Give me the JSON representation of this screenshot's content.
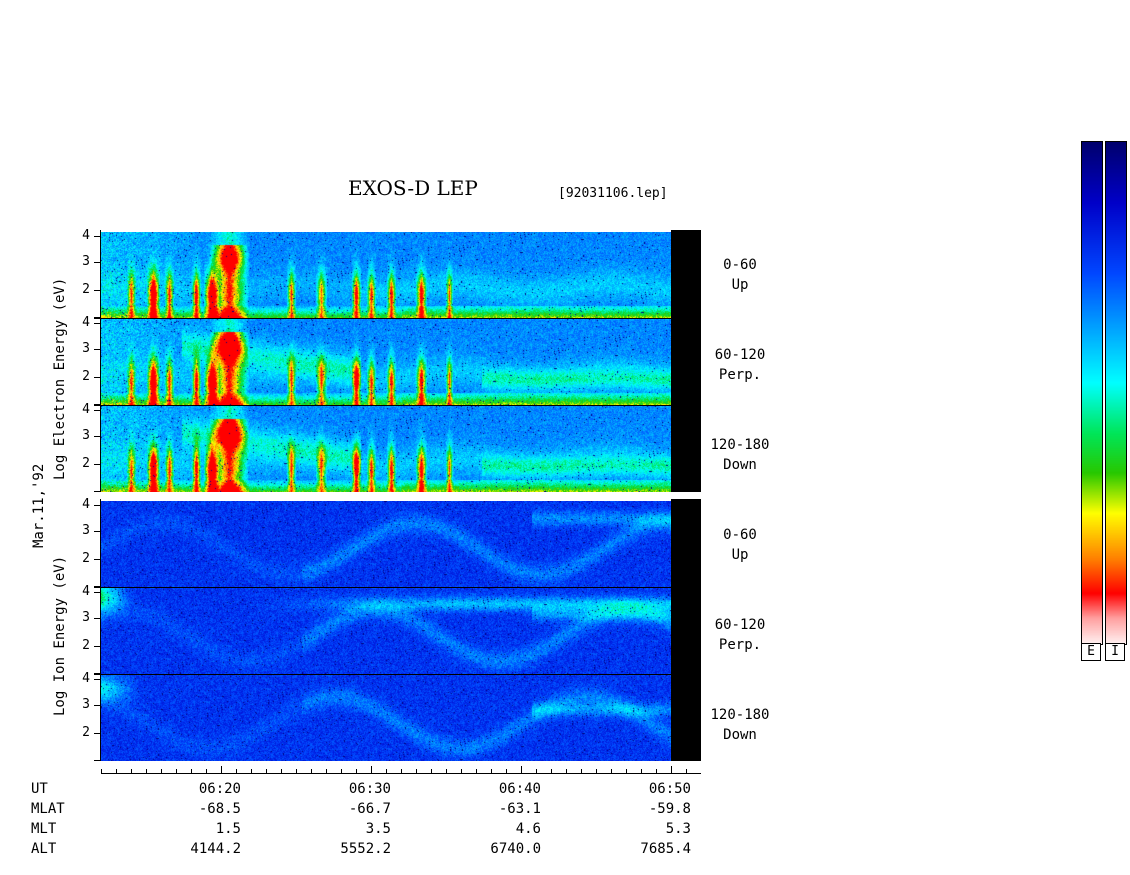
{
  "header": {
    "title": "EXOS-D LEP",
    "file": "[92031106.lep]"
  },
  "date_label": "Mar.11,'92",
  "electron_axis_label": "Log  Electron  Energy (eV)",
  "ion_axis_label": "Log  Ion  Energy (eV)",
  "panels": [
    {
      "species": "electron",
      "range": "0-60",
      "dir": "Up"
    },
    {
      "species": "electron",
      "range": "60-120",
      "dir": "Perp."
    },
    {
      "species": "electron",
      "range": "120-180",
      "dir": "Down"
    },
    {
      "species": "ion",
      "range": "0-60",
      "dir": "Up"
    },
    {
      "species": "ion",
      "range": "60-120",
      "dir": "Perp."
    },
    {
      "species": "ion",
      "range": "120-180",
      "dir": "Down"
    }
  ],
  "colorbar_labels": [
    "E",
    "I"
  ],
  "ephemeris": {
    "row_labels": [
      "UT",
      "MLAT",
      "MLT",
      "ALT"
    ],
    "columns": [
      {
        "UT": "06:20",
        "MLAT": "-68.5",
        "MLT": "1.5",
        "ALT": "4144.2"
      },
      {
        "UT": "06:30",
        "MLAT": "-66.7",
        "MLT": "3.5",
        "ALT": "5552.2"
      },
      {
        "UT": "06:40",
        "MLAT": "-63.1",
        "MLT": "4.6",
        "ALT": "6740.0"
      },
      {
        "UT": "06:50",
        "MLAT": "-59.8",
        "MLT": "5.3",
        "ALT": "7685.4"
      }
    ]
  },
  "chart_data": {
    "type": "heatmap",
    "title": "EXOS-D LEP",
    "x": {
      "label": "UT",
      "range": [
        "06:12",
        "06:50"
      ],
      "ticks": [
        "06:20",
        "06:30",
        "06:40",
        "06:50"
      ]
    },
    "y": {
      "label": "Log Energy (eV)",
      "range": [
        1,
        4
      ],
      "ticks": [
        "1",
        "2",
        "3",
        "4"
      ],
      "scale": "log"
    },
    "colormap": "white-red-yellow-green-cyan-blue",
    "panels": [
      {
        "name": "Electron 0-60 Up"
      },
      {
        "name": "Electron 60-120 Perp."
      },
      {
        "name": "Electron 120-180 Down"
      },
      {
        "name": "Ion 0-60 Up"
      },
      {
        "name": "Ion 60-120 Perp."
      },
      {
        "name": "Ion 120-180 Down"
      }
    ]
  }
}
